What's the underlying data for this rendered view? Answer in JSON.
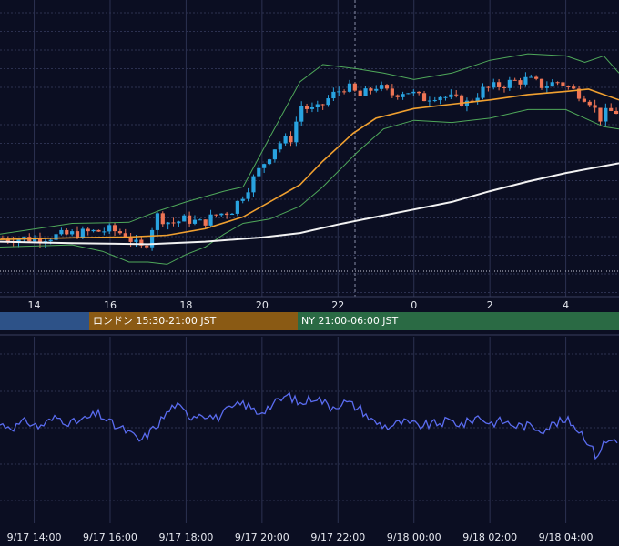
{
  "colors": {
    "background": "#0b0e22",
    "grid": "#2c3150",
    "candle_up": "#29a3e0",
    "candle_down": "#ef7555",
    "ma_short": "#f0a030",
    "ma_long": "#f2f2f2",
    "bollinger": "#4fa85a",
    "oscillator": "#5a6cf0",
    "session_tokyo": "#2d5288",
    "session_london": "#8a5a14",
    "session_ny": "#2a6a44"
  },
  "sessions": [
    {
      "label": ""
    },
    {
      "label": "ロンドン 15:30-21:00 JST"
    },
    {
      "label": "NY 21:00-06:00 JST"
    }
  ],
  "chart_data": {
    "type": "candlestick",
    "x_axis_top": {
      "ticks": [
        "14",
        "16",
        "18",
        "20",
        "22",
        "0",
        "2",
        "4"
      ]
    },
    "x_axis_bottom": {
      "ticks": [
        "9/17 14:00",
        "9/17 16:00",
        "9/17 18:00",
        "9/17 20:00",
        "9/17 22:00",
        "9/18 00:00",
        "9/18 02:00",
        "9/18 04:00"
      ]
    },
    "hours_range": [
      13.1,
      29.4
    ],
    "price_range": [
      0,
      100
    ],
    "indicator_range": [
      0,
      100
    ],
    "grid": true,
    "price_anchors": [
      [
        13.1,
        11
      ],
      [
        14.0,
        11
      ],
      [
        14.5,
        12
      ],
      [
        15.0,
        13
      ],
      [
        15.5,
        14
      ],
      [
        16.0,
        15
      ],
      [
        16.4,
        13
      ],
      [
        16.8,
        6
      ],
      [
        17.0,
        10
      ],
      [
        17.2,
        22
      ],
      [
        17.6,
        18
      ],
      [
        18.0,
        20
      ],
      [
        18.4,
        18
      ],
      [
        18.8,
        22
      ],
      [
        19.2,
        24
      ],
      [
        19.6,
        34
      ],
      [
        20.0,
        45
      ],
      [
        20.4,
        55
      ],
      [
        20.8,
        58
      ],
      [
        21.0,
        73
      ],
      [
        21.4,
        70
      ],
      [
        21.8,
        77
      ],
      [
        22.2,
        82
      ],
      [
        22.6,
        77
      ],
      [
        23.0,
        82
      ],
      [
        23.4,
        78
      ],
      [
        23.8,
        80
      ],
      [
        24.2,
        76
      ],
      [
        24.6,
        78
      ],
      [
        25.0,
        76
      ],
      [
        25.4,
        74
      ],
      [
        25.8,
        80
      ],
      [
        26.2,
        82
      ],
      [
        26.6,
        84
      ],
      [
        27.0,
        85
      ],
      [
        27.4,
        82
      ],
      [
        27.8,
        84
      ],
      [
        28.2,
        80
      ],
      [
        28.6,
        76
      ],
      [
        28.9,
        67
      ],
      [
        29.1,
        70
      ],
      [
        29.4,
        70
      ]
    ],
    "indicator_anchors": [
      [
        13.1,
        45
      ],
      [
        13.5,
        43
      ],
      [
        13.8,
        48
      ],
      [
        14.1,
        43
      ],
      [
        14.6,
        51
      ],
      [
        15.0,
        46
      ],
      [
        15.3,
        49
      ],
      [
        15.7,
        54
      ],
      [
        16.1,
        44
      ],
      [
        16.4,
        40
      ],
      [
        16.8,
        31
      ],
      [
        17.1,
        40
      ],
      [
        17.4,
        51
      ],
      [
        17.7,
        62
      ],
      [
        18.1,
        52
      ],
      [
        18.4,
        55
      ],
      [
        18.8,
        50
      ],
      [
        19.1,
        57
      ],
      [
        19.5,
        63
      ],
      [
        19.9,
        55
      ],
      [
        20.3,
        62
      ],
      [
        20.7,
        70
      ],
      [
        21.0,
        62
      ],
      [
        21.4,
        69
      ],
      [
        21.8,
        60
      ],
      [
        22.2,
        64
      ],
      [
        22.6,
        58
      ],
      [
        22.9,
        48
      ],
      [
        23.3,
        43
      ],
      [
        23.7,
        47
      ],
      [
        24.1,
        44
      ],
      [
        24.5,
        45
      ],
      [
        24.9,
        48
      ],
      [
        25.3,
        45
      ],
      [
        25.7,
        52
      ],
      [
        26.0,
        46
      ],
      [
        26.3,
        48
      ],
      [
        26.7,
        44
      ],
      [
        27.0,
        44
      ],
      [
        27.4,
        41
      ],
      [
        27.8,
        47
      ],
      [
        28.1,
        48
      ],
      [
        28.5,
        35
      ],
      [
        28.8,
        18
      ],
      [
        29.0,
        29
      ],
      [
        29.2,
        32
      ],
      [
        29.4,
        33
      ]
    ],
    "ma_short": [
      [
        13.1,
        10.5
      ],
      [
        15.0,
        11.3
      ],
      [
        16.5,
        11.7
      ],
      [
        17.5,
        12.5
      ],
      [
        18.5,
        15.5
      ],
      [
        19.5,
        21
      ],
      [
        20.2,
        28
      ],
      [
        21.0,
        36
      ],
      [
        21.6,
        47
      ],
      [
        22.4,
        60
      ],
      [
        23.0,
        67
      ],
      [
        24.0,
        71.5
      ],
      [
        25.0,
        73.5
      ],
      [
        26.0,
        75.5
      ],
      [
        27.0,
        78
      ],
      [
        28.0,
        79.5
      ],
      [
        28.6,
        80.5
      ],
      [
        29.4,
        75.5
      ]
    ],
    "ma_long": [
      [
        13.1,
        9.5
      ],
      [
        15.0,
        8.8
      ],
      [
        17.0,
        8.3
      ],
      [
        18.5,
        9.5
      ],
      [
        20.0,
        11.5
      ],
      [
        21.0,
        13.5
      ],
      [
        22.0,
        17.5
      ],
      [
        23.0,
        21
      ],
      [
        24.0,
        24.5
      ],
      [
        25.0,
        28
      ],
      [
        26.0,
        33
      ],
      [
        27.0,
        37.5
      ],
      [
        28.0,
        41.5
      ],
      [
        29.4,
        46
      ]
    ],
    "bb_upper": [
      [
        13.1,
        13
      ],
      [
        15.0,
        18
      ],
      [
        16.5,
        18.5
      ],
      [
        17.3,
        24
      ],
      [
        18.0,
        28
      ],
      [
        19.0,
        33
      ],
      [
        19.5,
        35
      ],
      [
        20.2,
        58
      ],
      [
        21.0,
        84
      ],
      [
        21.6,
        92
      ],
      [
        22.5,
        90
      ],
      [
        23.2,
        88
      ],
      [
        24.0,
        85
      ],
      [
        25.0,
        88
      ],
      [
        26.0,
        94
      ],
      [
        27.0,
        97
      ],
      [
        28.0,
        96
      ],
      [
        28.5,
        93
      ],
      [
        29.0,
        96
      ],
      [
        29.4,
        88
      ]
    ],
    "bb_lower": [
      [
        13.1,
        7
      ],
      [
        15.0,
        8
      ],
      [
        15.8,
        5
      ],
      [
        16.5,
        0
      ],
      [
        17.0,
        0
      ],
      [
        17.5,
        -1
      ],
      [
        18.0,
        3.5
      ],
      [
        18.5,
        7
      ],
      [
        19.0,
        13
      ],
      [
        19.5,
        18
      ],
      [
        20.2,
        20
      ],
      [
        21.0,
        26
      ],
      [
        21.6,
        35
      ],
      [
        22.5,
        51
      ],
      [
        23.2,
        62
      ],
      [
        24.0,
        66
      ],
      [
        25.0,
        65
      ],
      [
        26.0,
        67
      ],
      [
        27.0,
        71
      ],
      [
        28.0,
        71
      ],
      [
        29.0,
        63
      ],
      [
        29.4,
        62
      ]
    ]
  }
}
